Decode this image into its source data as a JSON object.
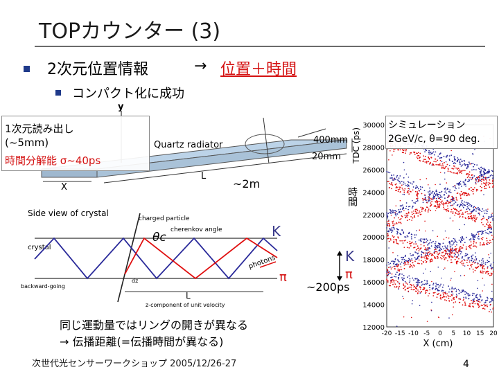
{
  "slide": {
    "title": "TOPカウンター (3)",
    "bullet1": {
      "text": "2次元位置情報",
      "arrow": "→",
      "highlight": "位置＋時間"
    },
    "bullet2": {
      "text": "コンパクト化に成功"
    },
    "note": {
      "line1": "1次元読み出し",
      "line2": "(~5mm)",
      "line3": "時間分解能 σ~40ps"
    },
    "simulation": {
      "line1": "シミュレーション",
      "line2": "2GeV/c, θ=90 deg."
    },
    "length_label": "~2m",
    "kaon_label": "K",
    "pion_label": "π",
    "legend_kaon": "K",
    "legend_pion": "π",
    "separation": "~200ps",
    "time_axis_jp": "時間",
    "bottom_line1": "同じ運動量ではリングの開きが異なる",
    "bottom_line2": "→ 伝播距離(=伝播時間が異なる)",
    "footer": "次世代光センサーワークショップ 2005/12/26-27",
    "page_number": "4"
  },
  "radiator_figure": {
    "title": "Quartz radiator",
    "y_axis": "y",
    "x_axis": "X",
    "length_axis": "L",
    "dim1": "400mm",
    "dim2": "20mm"
  },
  "side_view": {
    "title": "Side view of crystal",
    "charged_particle": "charged particle",
    "theta_c": "θc",
    "cherenkov_angle": "cherenkov angle",
    "crystal": "crystal",
    "photons": "photons",
    "backward_going": "backward-going",
    "dz": "dz",
    "L": "L",
    "z_component": "z-component of unit velocity"
  },
  "chart_data": {
    "type": "scatter",
    "xlabel": "X (cm)",
    "ylabel": "TDC (ps)",
    "xlim": [
      -20,
      20
    ],
    "ylim": [
      12000,
      30000
    ],
    "x_ticks": [
      -20,
      -15,
      -10,
      -5,
      0,
      5,
      10,
      15,
      20
    ],
    "y_ticks": [
      12000,
      14000,
      16000,
      18000,
      20000,
      22000,
      24000,
      26000,
      28000,
      30000
    ],
    "series": [
      {
        "name": "K",
        "color": "#2a2a9a"
      },
      {
        "name": "π",
        "color": "#e01010"
      }
    ]
  }
}
